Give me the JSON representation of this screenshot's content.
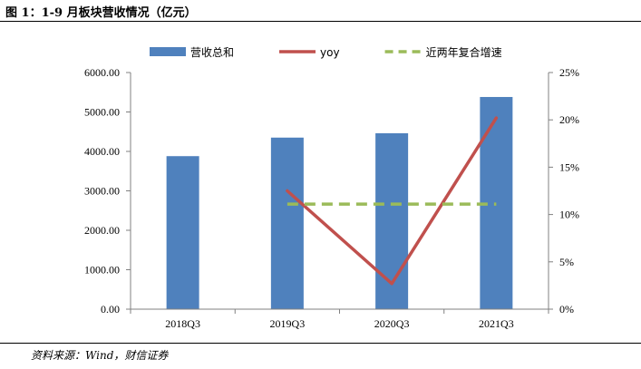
{
  "header": {
    "title": "图 1：1-9 月板块营收情况（亿元）"
  },
  "footer": {
    "source": "资料来源：Wind，财信证券"
  },
  "chart_data": {
    "type": "bar",
    "categories": [
      "2018Q3",
      "2019Q3",
      "2020Q3",
      "2021Q3"
    ],
    "series": [
      {
        "name": "营收总和",
        "type": "bar",
        "axis": "left",
        "color": "#4f81bd",
        "values": [
          3880,
          4350,
          4460,
          5380
        ]
      },
      {
        "name": "yoy",
        "type": "line",
        "axis": "right",
        "color": "#c0504d",
        "values": [
          null,
          0.125,
          0.027,
          0.202
        ]
      },
      {
        "name": "近两年复合增速",
        "type": "line",
        "axis": "right",
        "style": "dashed",
        "color": "#9bbb59",
        "values": [
          null,
          0.111,
          0.111,
          0.111
        ]
      }
    ],
    "y_left": {
      "ylim": [
        0,
        6000
      ],
      "ticks": [
        "0.00",
        "1000.00",
        "2000.00",
        "3000.00",
        "4000.00",
        "5000.00",
        "6000.00"
      ]
    },
    "y_right": {
      "ylim": [
        0,
        0.25
      ],
      "ticks": [
        "0%",
        "5%",
        "10%",
        "15%",
        "20%",
        "25%"
      ]
    },
    "legend_position": "top",
    "grid": false
  }
}
